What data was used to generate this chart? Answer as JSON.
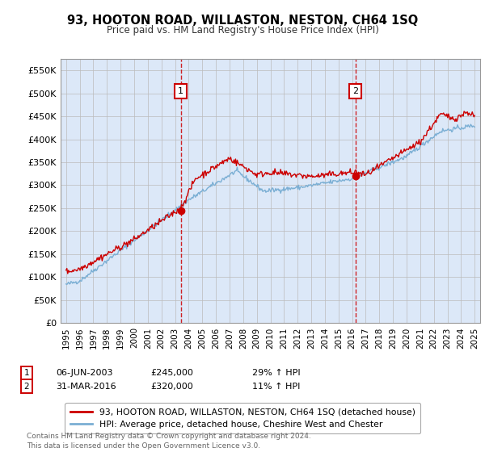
{
  "title": "93, HOOTON ROAD, WILLASTON, NESTON, CH64 1SQ",
  "subtitle": "Price paid vs. HM Land Registry's House Price Index (HPI)",
  "plot_bg_color": "#dce8f8",
  "ylim": [
    0,
    575000
  ],
  "yticks": [
    0,
    50000,
    100000,
    150000,
    200000,
    250000,
    300000,
    350000,
    400000,
    450000,
    500000,
    550000
  ],
  "ytick_labels": [
    "£0",
    "£50K",
    "£100K",
    "£150K",
    "£200K",
    "£250K",
    "£300K",
    "£350K",
    "£400K",
    "£450K",
    "£500K",
    "£550K"
  ],
  "sale1_date": 2003.43,
  "sale1_price": 245000,
  "sale1_date_str": "06-JUN-2003",
  "sale1_hpi": "29% ↑ HPI",
  "sale2_date": 2016.25,
  "sale2_price": 320000,
  "sale2_date_str": "31-MAR-2016",
  "sale2_hpi": "11% ↑ HPI",
  "legend_line1": "93, HOOTON ROAD, WILLASTON, NESTON, CH64 1SQ (detached house)",
  "legend_line2": "HPI: Average price, detached house, Cheshire West and Chester",
  "footer": "Contains HM Land Registry data © Crown copyright and database right 2024.\nThis data is licensed under the Open Government Licence v3.0.",
  "red_color": "#cc0000",
  "blue_color": "#7bafd4",
  "grid_color": "#bbbbbb",
  "annotation_box_color": "#cc0000",
  "xmin": 1995,
  "xmax": 2025
}
